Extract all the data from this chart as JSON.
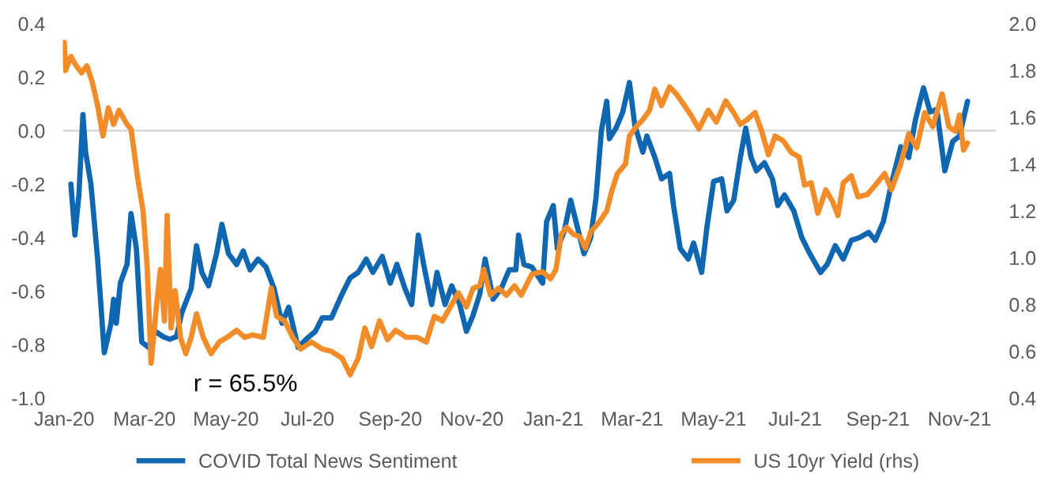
{
  "chart_data": {
    "type": "line",
    "annotations": [
      "r = 65.5%"
    ],
    "xlim": [
      "2019-12-31",
      "2021-11-28"
    ],
    "xticks": [
      {
        "value": "2020-01-01",
        "label": "Jan-20"
      },
      {
        "value": "2020-03-01",
        "label": "Mar-20"
      },
      {
        "value": "2020-05-01",
        "label": "May-20"
      },
      {
        "value": "2020-07-01",
        "label": "Jul-20"
      },
      {
        "value": "2020-09-01",
        "label": "Sep-20"
      },
      {
        "value": "2020-11-01",
        "label": "Nov-20"
      },
      {
        "value": "2021-01-01",
        "label": "Jan-21"
      },
      {
        "value": "2021-03-01",
        "label": "Mar-21"
      },
      {
        "value": "2021-05-01",
        "label": "May-21"
      },
      {
        "value": "2021-07-01",
        "label": "Jul-21"
      },
      {
        "value": "2021-09-01",
        "label": "Sep-21"
      },
      {
        "value": "2021-11-01",
        "label": "Nov-21"
      }
    ],
    "ylim": [
      -1.0,
      0.4
    ],
    "yticks": [
      {
        "value": -1.0,
        "label": "-1.0"
      },
      {
        "value": -0.8,
        "label": "-0.8"
      },
      {
        "value": -0.6,
        "label": "-0.6"
      },
      {
        "value": -0.4,
        "label": "-0.4"
      },
      {
        "value": -0.2,
        "label": "-0.2"
      },
      {
        "value": 0.0,
        "label": "0.0"
      },
      {
        "value": 0.2,
        "label": "0.2"
      },
      {
        "value": 0.4,
        "label": "0.4"
      }
    ],
    "y2lim": [
      0.4,
      2.0
    ],
    "y2ticks": [
      {
        "value": 0.4,
        "label": "0.4"
      },
      {
        "value": 0.6,
        "label": "0.6"
      },
      {
        "value": 0.8,
        "label": "0.8"
      },
      {
        "value": 1.0,
        "label": "1.0"
      },
      {
        "value": 1.2,
        "label": "1.2"
      },
      {
        "value": 1.4,
        "label": "1.4"
      },
      {
        "value": 1.6,
        "label": "1.6"
      },
      {
        "value": 1.8,
        "label": "1.8"
      },
      {
        "value": 2.0,
        "label": "2.0"
      }
    ],
    "ref_lines": [
      {
        "axis": "y",
        "value": 0,
        "color": "#d9d9d9"
      }
    ],
    "grid": false,
    "legend": "bottom",
    "marker": "none",
    "line_style": "solid",
    "series": [
      {
        "name": "COVID Total News Sentiment",
        "color": "#0f67b1",
        "axis": "y",
        "x": [
          "2020-01-06",
          "2020-01-09",
          "2020-01-12",
          "2020-01-15",
          "2020-01-17",
          "2020-01-21",
          "2020-01-26",
          "2020-01-31",
          "2020-02-05",
          "2020-02-07",
          "2020-02-09",
          "2020-02-12",
          "2020-02-17",
          "2020-02-20",
          "2020-02-24",
          "2020-02-28",
          "2020-03-04",
          "2020-03-09",
          "2020-03-15",
          "2020-03-20",
          "2020-03-25",
          "2020-03-29",
          "2020-04-05",
          "2020-04-09",
          "2020-04-13",
          "2020-04-18",
          "2020-04-24",
          "2020-04-28",
          "2020-05-03",
          "2020-05-09",
          "2020-05-14",
          "2020-05-19",
          "2020-05-25",
          "2020-05-31",
          "2020-06-06",
          "2020-06-12",
          "2020-06-17",
          "2020-06-24",
          "2020-06-30",
          "2020-07-07",
          "2020-07-12",
          "2020-07-19",
          "2020-07-27",
          "2020-08-02",
          "2020-08-08",
          "2020-08-14",
          "2020-08-19",
          "2020-08-26",
          "2020-09-01",
          "2020-09-06",
          "2020-09-12",
          "2020-09-17",
          "2020-09-22",
          "2020-09-26",
          "2020-10-02",
          "2020-10-06",
          "2020-10-12",
          "2020-10-17",
          "2020-10-23",
          "2020-10-28",
          "2020-11-02",
          "2020-11-07",
          "2020-11-11",
          "2020-11-17",
          "2020-11-23",
          "2020-11-29",
          "2020-12-04",
          "2020-12-06",
          "2020-12-10",
          "2020-12-16",
          "2020-12-20",
          "2020-12-24",
          "2020-12-27",
          "2021-01-01",
          "2021-01-04",
          "2021-01-09",
          "2021-01-14",
          "2021-01-19",
          "2021-01-24",
          "2021-01-29",
          "2021-02-02",
          "2021-02-06",
          "2021-02-10",
          "2021-02-12",
          "2021-02-17",
          "2021-02-22",
          "2021-02-27",
          "2021-03-03",
          "2021-03-09",
          "2021-03-12",
          "2021-03-18",
          "2021-03-23",
          "2021-03-29",
          "2021-04-01",
          "2021-04-06",
          "2021-04-12",
          "2021-04-16",
          "2021-04-22",
          "2021-04-26",
          "2021-05-01",
          "2021-05-07",
          "2021-05-11",
          "2021-05-16",
          "2021-05-21",
          "2021-05-25",
          "2021-05-29",
          "2021-06-02",
          "2021-06-08",
          "2021-06-14",
          "2021-06-18",
          "2021-06-23",
          "2021-06-30",
          "2021-07-06",
          "2021-07-12",
          "2021-07-20",
          "2021-07-25",
          "2021-07-31",
          "2021-08-06",
          "2021-08-12",
          "2021-08-18",
          "2021-08-25",
          "2021-08-30",
          "2021-09-05",
          "2021-09-11",
          "2021-09-18",
          "2021-09-24",
          "2021-09-29",
          "2021-10-05",
          "2021-10-10",
          "2021-10-15",
          "2021-10-21",
          "2021-10-27",
          "2021-11-01",
          "2021-11-07"
        ],
        "values": [
          -0.2,
          -0.39,
          -0.24,
          0.06,
          -0.08,
          -0.2,
          -0.48,
          -0.83,
          -0.72,
          -0.63,
          -0.72,
          -0.57,
          -0.5,
          -0.31,
          -0.44,
          -0.79,
          -0.81,
          -0.75,
          -0.77,
          -0.78,
          -0.77,
          -0.68,
          -0.59,
          -0.43,
          -0.53,
          -0.58,
          -0.46,
          -0.35,
          -0.46,
          -0.5,
          -0.45,
          -0.52,
          -0.48,
          -0.51,
          -0.59,
          -0.72,
          -0.66,
          -0.81,
          -0.78,
          -0.75,
          -0.7,
          -0.7,
          -0.61,
          -0.55,
          -0.53,
          -0.48,
          -0.53,
          -0.47,
          -0.57,
          -0.5,
          -0.59,
          -0.65,
          -0.39,
          -0.5,
          -0.65,
          -0.53,
          -0.65,
          -0.58,
          -0.65,
          -0.75,
          -0.69,
          -0.61,
          -0.48,
          -0.63,
          -0.59,
          -0.52,
          -0.52,
          -0.39,
          -0.5,
          -0.51,
          -0.54,
          -0.57,
          -0.34,
          -0.28,
          -0.44,
          -0.38,
          -0.26,
          -0.36,
          -0.46,
          -0.4,
          -0.25,
          0.0,
          0.11,
          -0.03,
          0.01,
          0.07,
          0.18,
          0.02,
          -0.08,
          -0.02,
          -0.1,
          -0.18,
          -0.16,
          -0.28,
          -0.44,
          -0.48,
          -0.42,
          -0.53,
          -0.36,
          -0.19,
          -0.18,
          -0.3,
          -0.26,
          -0.1,
          0.01,
          -0.1,
          -0.15,
          -0.12,
          -0.18,
          -0.28,
          -0.24,
          -0.3,
          -0.4,
          -0.46,
          -0.53,
          -0.5,
          -0.43,
          -0.48,
          -0.41,
          -0.4,
          -0.38,
          -0.41,
          -0.34,
          -0.2,
          -0.06,
          -0.1,
          0.04,
          0.16,
          0.07,
          0.08,
          -0.15,
          -0.04,
          -0.02,
          0.11
        ]
      },
      {
        "name": "US 10yr Yield (rhs)",
        "color": "#f28c28",
        "axis": "y2",
        "x": [
          "2020-01-01",
          "2020-01-02",
          "2020-01-06",
          "2020-01-10",
          "2020-01-14",
          "2020-01-18",
          "2020-01-22",
          "2020-01-26",
          "2020-01-30",
          "2020-02-03",
          "2020-02-07",
          "2020-02-11",
          "2020-02-17",
          "2020-02-20",
          "2020-02-25",
          "2020-02-29",
          "2020-03-03",
          "2020-03-06",
          "2020-03-10",
          "2020-03-13",
          "2020-03-16",
          "2020-03-18",
          "2020-03-21",
          "2020-03-24",
          "2020-03-28",
          "2020-04-01",
          "2020-04-05",
          "2020-04-09",
          "2020-04-14",
          "2020-04-20",
          "2020-04-26",
          "2020-05-02",
          "2020-05-09",
          "2020-05-15",
          "2020-05-21",
          "2020-05-29",
          "2020-06-04",
          "2020-06-08",
          "2020-06-14",
          "2020-06-20",
          "2020-06-26",
          "2020-07-04",
          "2020-07-12",
          "2020-07-19",
          "2020-07-27",
          "2020-08-02",
          "2020-08-08",
          "2020-08-13",
          "2020-08-18",
          "2020-08-24",
          "2020-08-30",
          "2020-09-05",
          "2020-09-13",
          "2020-09-21",
          "2020-09-28",
          "2020-10-04",
          "2020-10-10",
          "2020-10-16",
          "2020-10-22",
          "2020-10-28",
          "2020-11-02",
          "2020-11-07",
          "2020-11-10",
          "2020-11-15",
          "2020-11-21",
          "2020-11-27",
          "2020-12-03",
          "2020-12-08",
          "2020-12-16",
          "2020-12-24",
          "2020-12-30",
          "2021-01-03",
          "2021-01-07",
          "2021-01-11",
          "2021-01-16",
          "2021-01-21",
          "2021-01-25",
          "2021-01-29",
          "2021-02-04",
          "2021-02-10",
          "2021-02-14",
          "2021-02-18",
          "2021-02-24",
          "2021-02-27",
          "2021-03-04",
          "2021-03-09",
          "2021-03-14",
          "2021-03-18",
          "2021-03-23",
          "2021-03-29",
          "2021-04-03",
          "2021-04-08",
          "2021-04-14",
          "2021-04-20",
          "2021-04-27",
          "2021-05-03",
          "2021-05-10",
          "2021-05-16",
          "2021-05-21",
          "2021-05-26",
          "2021-06-01",
          "2021-06-06",
          "2021-06-11",
          "2021-06-16",
          "2021-06-22",
          "2021-06-28",
          "2021-07-04",
          "2021-07-08",
          "2021-07-13",
          "2021-07-18",
          "2021-07-24",
          "2021-07-29",
          "2021-08-02",
          "2021-08-06",
          "2021-08-12",
          "2021-08-17",
          "2021-08-24",
          "2021-08-30",
          "2021-09-06",
          "2021-09-11",
          "2021-09-18",
          "2021-09-24",
          "2021-09-30",
          "2021-10-06",
          "2021-10-12",
          "2021-10-19",
          "2021-10-24",
          "2021-10-29",
          "2021-11-01",
          "2021-11-04",
          "2021-11-07"
        ],
        "values": [
          1.92,
          1.8,
          1.86,
          1.82,
          1.79,
          1.82,
          1.75,
          1.65,
          1.52,
          1.64,
          1.57,
          1.63,
          1.57,
          1.55,
          1.34,
          1.2,
          0.97,
          0.55,
          0.79,
          0.95,
          0.73,
          1.18,
          0.7,
          0.86,
          0.66,
          0.59,
          0.66,
          0.76,
          0.66,
          0.59,
          0.64,
          0.66,
          0.69,
          0.66,
          0.67,
          0.66,
          0.87,
          0.75,
          0.73,
          0.66,
          0.61,
          0.64,
          0.61,
          0.6,
          0.57,
          0.5,
          0.57,
          0.7,
          0.62,
          0.73,
          0.65,
          0.69,
          0.66,
          0.66,
          0.64,
          0.75,
          0.73,
          0.79,
          0.85,
          0.79,
          0.87,
          0.88,
          0.95,
          0.84,
          0.87,
          0.84,
          0.88,
          0.84,
          0.93,
          0.94,
          0.91,
          0.95,
          1.1,
          1.13,
          1.1,
          1.09,
          1.04,
          1.11,
          1.15,
          1.2,
          1.29,
          1.36,
          1.4,
          1.52,
          1.56,
          1.59,
          1.63,
          1.72,
          1.65,
          1.73,
          1.7,
          1.66,
          1.61,
          1.55,
          1.63,
          1.58,
          1.67,
          1.62,
          1.57,
          1.59,
          1.62,
          1.54,
          1.44,
          1.52,
          1.5,
          1.45,
          1.43,
          1.31,
          1.32,
          1.19,
          1.29,
          1.24,
          1.18,
          1.32,
          1.35,
          1.26,
          1.27,
          1.31,
          1.36,
          1.29,
          1.4,
          1.53,
          1.47,
          1.62,
          1.56,
          1.7,
          1.56,
          1.54,
          1.61,
          1.46,
          1.49
        ]
      }
    ]
  }
}
